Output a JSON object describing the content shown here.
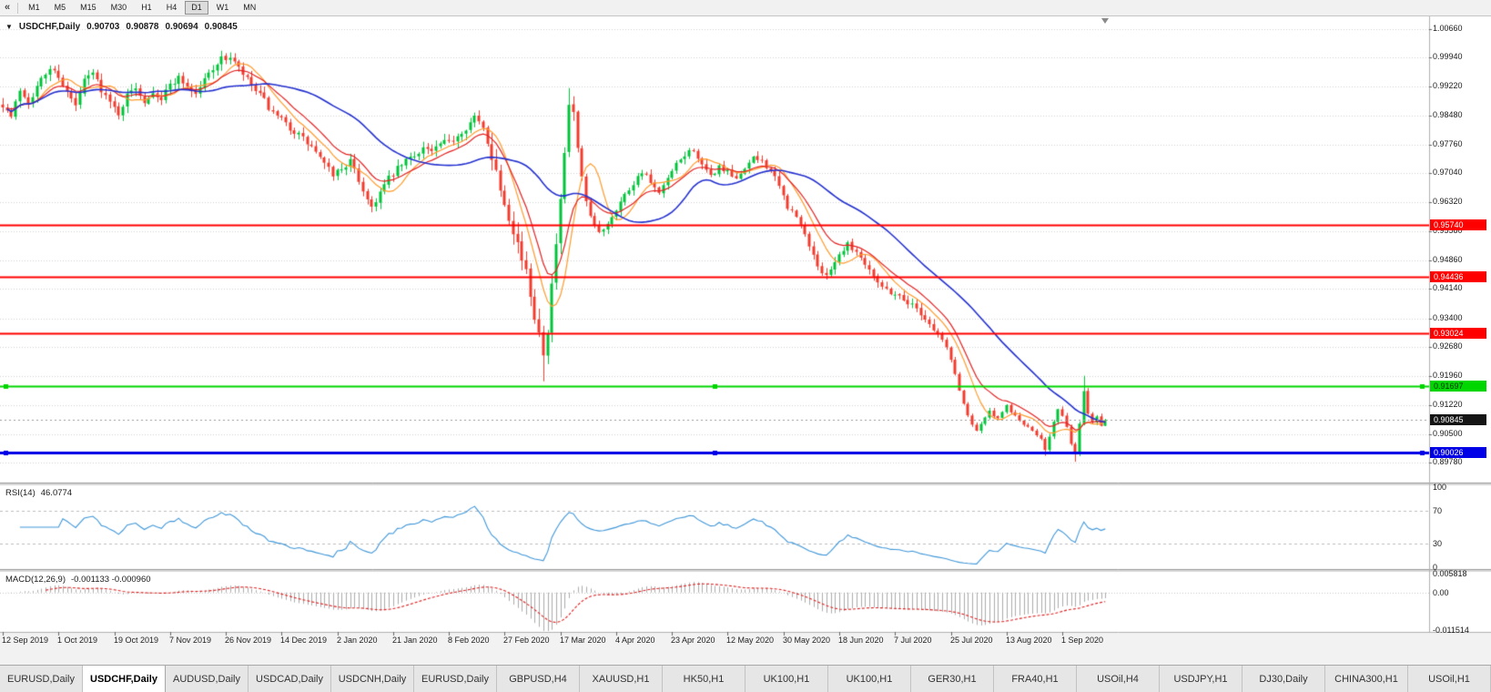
{
  "toolbar": {
    "timeframes": [
      {
        "label": "M1",
        "active": false
      },
      {
        "label": "M5",
        "active": false
      },
      {
        "label": "M15",
        "active": false
      },
      {
        "label": "M30",
        "active": false
      },
      {
        "label": "H1",
        "active": false
      },
      {
        "label": "H4",
        "active": false
      },
      {
        "label": "D1",
        "active": true
      },
      {
        "label": "W1",
        "active": false
      },
      {
        "label": "MN",
        "active": false
      }
    ]
  },
  "header": {
    "symbol": "USDCHF,Daily",
    "open": "0.90703",
    "high": "0.90878",
    "low": "0.90694",
    "close": "0.90845"
  },
  "chart_data": {
    "type": "candlestick",
    "title": "USDCHF,Daily",
    "symbol": "USDCHF",
    "timeframe": "Daily",
    "last_bar_ohlc": {
      "open": 0.90703,
      "high": 0.90878,
      "low": 0.90694,
      "close": 0.90845
    },
    "bars_total": 258,
    "x_labels": [
      "12 Sep 2019",
      "1 Oct 2019",
      "19 Oct 2019",
      "7 Nov 2019",
      "26 Nov 2019",
      "14 Dec 2019",
      "2 Jan 2020",
      "21 Jan 2020",
      "8 Feb 2020",
      "27 Feb 2020",
      "17 Mar 2020",
      "4 Apr 2020",
      "23 Apr 2020",
      "12 May 2020",
      "30 May 2020",
      "18 Jun 2020",
      "7 Jul 2020",
      "25 Jul 2020",
      "13 Aug 2020",
      "1 Sep 2020"
    ],
    "x_label_step_bars": 13,
    "y_axis": {
      "top_price": 1.00979,
      "bottom_price": 0.89278,
      "labels": [
        "1.00660",
        "0.99940",
        "0.99220",
        "0.98480",
        "0.97760",
        "0.97040",
        "0.96320",
        "0.95580",
        "0.94860",
        "0.94140",
        "0.93400",
        "0.92680",
        "0.91960",
        "0.91220",
        "0.90500",
        "0.89780"
      ]
    },
    "close_path": [
      [
        0,
        0.9878
      ],
      [
        2,
        0.9845
      ],
      [
        4,
        0.9915
      ],
      [
        6,
        0.9885
      ],
      [
        9,
        0.9938
      ],
      [
        11,
        0.9968
      ],
      [
        13,
        0.995
      ],
      [
        15,
        0.9906
      ],
      [
        17,
        0.9872
      ],
      [
        19,
        0.9936
      ],
      [
        21,
        0.9956
      ],
      [
        23,
        0.9916
      ],
      [
        25,
        0.988
      ],
      [
        27,
        0.9856
      ],
      [
        29,
        0.9898
      ],
      [
        31,
        0.9922
      ],
      [
        33,
        0.9886
      ],
      [
        35,
        0.9912
      ],
      [
        37,
        0.989
      ],
      [
        39,
        0.9928
      ],
      [
        41,
        0.9944
      ],
      [
        43,
        0.9924
      ],
      [
        45,
        0.9902
      ],
      [
        47,
        0.994
      ],
      [
        49,
        0.997
      ],
      [
        51,
        0.999
      ],
      [
        53,
        0.9996
      ],
      [
        55,
        0.9966
      ],
      [
        57,
        0.9938
      ],
      [
        59,
        0.991
      ],
      [
        61,
        0.9886
      ],
      [
        63,
        0.9852
      ],
      [
        65,
        0.9836
      ],
      [
        67,
        0.9818
      ],
      [
        69,
        0.98
      ],
      [
        71,
        0.978
      ],
      [
        73,
        0.9758
      ],
      [
        75,
        0.9724
      ],
      [
        77,
        0.9702
      ],
      [
        79,
        0.9716
      ],
      [
        81,
        0.9734
      ],
      [
        83,
        0.9686
      ],
      [
        85,
        0.964
      ],
      [
        86,
        0.962
      ],
      [
        88,
        0.9656
      ],
      [
        90,
        0.969
      ],
      [
        92,
        0.9714
      ],
      [
        94,
        0.9736
      ],
      [
        96,
        0.975
      ],
      [
        98,
        0.977
      ],
      [
        100,
        0.9758
      ],
      [
        102,
        0.9776
      ],
      [
        104,
        0.9782
      ],
      [
        106,
        0.98
      ],
      [
        108,
        0.982
      ],
      [
        110,
        0.9844
      ],
      [
        112,
        0.9816
      ],
      [
        114,
        0.975
      ],
      [
        116,
        0.967
      ],
      [
        118,
        0.96
      ],
      [
        120,
        0.953
      ],
      [
        122,
        0.945
      ],
      [
        124,
        0.935
      ],
      [
        126,
        0.9262
      ],
      [
        127,
        0.9316
      ],
      [
        128,
        0.942
      ],
      [
        129,
        0.9526
      ],
      [
        130,
        0.9626
      ],
      [
        131,
        0.9746
      ],
      [
        132,
        0.9876
      ],
      [
        133,
        0.985
      ],
      [
        134,
        0.9766
      ],
      [
        135,
        0.969
      ],
      [
        136,
        0.963
      ],
      [
        137,
        0.959
      ],
      [
        139,
        0.9554
      ],
      [
        141,
        0.958
      ],
      [
        143,
        0.9616
      ],
      [
        145,
        0.965
      ],
      [
        147,
        0.968
      ],
      [
        149,
        0.971
      ],
      [
        151,
        0.968
      ],
      [
        153,
        0.965
      ],
      [
        155,
        0.969
      ],
      [
        157,
        0.9724
      ],
      [
        159,
        0.975
      ],
      [
        161,
        0.9766
      ],
      [
        163,
        0.972
      ],
      [
        165,
        0.9696
      ],
      [
        167,
        0.972
      ],
      [
        169,
        0.9706
      ],
      [
        171,
        0.9686
      ],
      [
        173,
        0.972
      ],
      [
        175,
        0.974
      ],
      [
        177,
        0.9736
      ],
      [
        179,
        0.971
      ],
      [
        181,
        0.967
      ],
      [
        183,
        0.962
      ],
      [
        185,
        0.9594
      ],
      [
        187,
        0.955
      ],
      [
        189,
        0.95
      ],
      [
        191,
        0.9446
      ],
      [
        193,
        0.9466
      ],
      [
        195,
        0.95
      ],
      [
        197,
        0.953
      ],
      [
        199,
        0.9506
      ],
      [
        201,
        0.948
      ],
      [
        203,
        0.945
      ],
      [
        205,
        0.942
      ],
      [
        207,
        0.9406
      ],
      [
        209,
        0.9396
      ],
      [
        211,
        0.938
      ],
      [
        213,
        0.9366
      ],
      [
        215,
        0.934
      ],
      [
        217,
        0.9312
      ],
      [
        219,
        0.9286
      ],
      [
        220,
        0.9266
      ],
      [
        221,
        0.9236
      ],
      [
        222,
        0.92
      ],
      [
        223,
        0.916
      ],
      [
        224,
        0.9126
      ],
      [
        225,
        0.9096
      ],
      [
        226,
        0.9076
      ],
      [
        227,
        0.906
      ],
      [
        228,
        0.9076
      ],
      [
        230,
        0.9106
      ],
      [
        232,
        0.9086
      ],
      [
        234,
        0.912
      ],
      [
        236,
        0.9094
      ],
      [
        238,
        0.9074
      ],
      [
        240,
        0.9056
      ],
      [
        242,
        0.904
      ],
      [
        243,
        0.9012
      ],
      [
        244,
        0.9046
      ],
      [
        245,
        0.908
      ],
      [
        246,
        0.911
      ],
      [
        247,
        0.9094
      ],
      [
        248,
        0.9064
      ],
      [
        249,
        0.9028
      ],
      [
        250,
        0.8998
      ],
      [
        251,
        0.9074
      ],
      [
        252,
        0.9158
      ],
      [
        253,
        0.9104
      ],
      [
        254,
        0.908
      ],
      [
        255,
        0.9096
      ],
      [
        256,
        0.90703
      ],
      [
        257,
        0.90845
      ]
    ],
    "volatility_segments": [
      [
        0,
        113,
        0.0016
      ],
      [
        114,
        133,
        0.0028
      ],
      [
        134,
        218,
        0.0013
      ],
      [
        219,
        257,
        0.0007
      ]
    ],
    "notable_bars": [
      {
        "bar": 53,
        "high": 1.0005
      },
      {
        "bar": 126,
        "low": 0.9182
      },
      {
        "bar": 132,
        "high": 0.9918
      },
      {
        "bar": 243,
        "low": 0.8995
      },
      {
        "bar": 250,
        "low": 0.898
      },
      {
        "bar": 252,
        "high": 0.9196
      }
    ],
    "horizontal_lines": [
      {
        "price": 0.9574,
        "label": "0.95740",
        "color": "#ff0000",
        "width": 2,
        "selected": false,
        "text_color": "#ffffff"
      },
      {
        "price": 0.94436,
        "label": "0.94436",
        "color": "#ff0000",
        "width": 2,
        "selected": false,
        "text_color": "#ffffff"
      },
      {
        "price": 0.93024,
        "label": "0.93024",
        "color": "#ff0000",
        "width": 2,
        "selected": false,
        "text_color": "#ffffff"
      },
      {
        "price": 0.91697,
        "label": "0.91697",
        "color": "#00d600",
        "width": 2,
        "selected": true,
        "text_color": "#003300"
      },
      {
        "price": 0.90026,
        "label": "0.90026",
        "color": "#0000e6",
        "width": 3,
        "selected": true,
        "text_color": "#ffffff"
      }
    ],
    "current_price": {
      "value": 0.90845,
      "label": "0.90845",
      "badge_bg": "#151515",
      "badge_text": "#ffffff"
    },
    "candle_colors": {
      "up": "#00c53a",
      "down": "#f13b2e"
    },
    "moving_averages": [
      {
        "period": 8,
        "method": "sma",
        "color": "#ff9b2c"
      },
      {
        "period": 13,
        "method": "ema",
        "color": "#e32222"
      },
      {
        "period": 34,
        "method": "sma",
        "color": "#2431cf"
      }
    ],
    "indicators": {
      "rsi": {
        "name": "RSI(14)",
        "period": 14,
        "current_display": "46.0774",
        "levels": [
          70,
          30
        ],
        "scale_labels": [
          {
            "value": 100,
            "text": "100"
          },
          {
            "value": 70,
            "text": "70"
          },
          {
            "value": 30,
            "text": "30"
          },
          {
            "value": 0,
            "text": "0"
          }
        ],
        "color": "#3f97d9"
      },
      "macd": {
        "name": "MACD(12,26,9)",
        "fast": 12,
        "slow": 26,
        "signal": 9,
        "current_display": "-0.001133 -0.000960",
        "scale_max": 0.005818,
        "scale_min": -0.011514,
        "scale_labels": [
          {
            "value": 0.005818,
            "text": "0.005818"
          },
          {
            "value": 0,
            "text": "0.00"
          },
          {
            "value": -0.011514,
            "text": "-0.011514"
          }
        ],
        "histogram_color": "#ababab",
        "signal_color": "#e02020"
      }
    }
  },
  "tabs": [
    {
      "label": "EURUSD,Daily",
      "active": false
    },
    {
      "label": "USDCHF,Daily",
      "active": true
    },
    {
      "label": "AUDUSD,Daily",
      "active": false
    },
    {
      "label": "USDCAD,Daily",
      "active": false
    },
    {
      "label": "USDCNH,Daily",
      "active": false
    },
    {
      "label": "EURUSD,Daily",
      "active": false
    },
    {
      "label": "GBPUSD,H4",
      "active": false
    },
    {
      "label": "XAUUSD,H1",
      "active": false
    },
    {
      "label": "HK50,H1",
      "active": false
    },
    {
      "label": "UK100,H1",
      "active": false
    },
    {
      "label": "UK100,H1",
      "active": false
    },
    {
      "label": "GER30,H1",
      "active": false
    },
    {
      "label": "FRA40,H1",
      "active": false
    },
    {
      "label": "USOil,H4",
      "active": false
    },
    {
      "label": "USDJPY,H1",
      "active": false
    },
    {
      "label": "DJ30,Daily",
      "active": false
    },
    {
      "label": "CHINA300,H1",
      "active": false
    },
    {
      "label": "USOil,H1",
      "active": false
    }
  ]
}
